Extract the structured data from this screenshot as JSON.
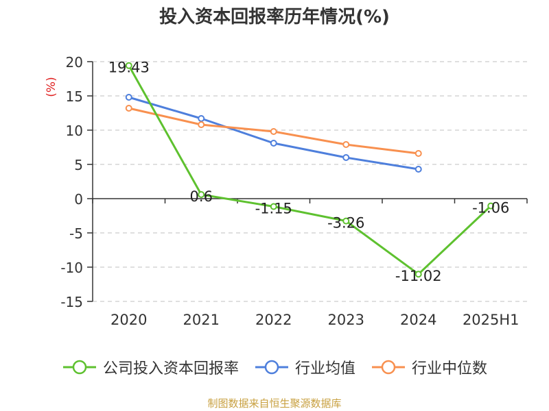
{
  "title": "投入资本回报率历年情况(%)",
  "source": "制图数据来自恒生聚源数据库",
  "colors": {
    "company": "#5ec12f",
    "industry_avg": "#4e7fdc",
    "industry_median": "#f8904f",
    "axis": "#333333",
    "grid": "#cccccc",
    "ylabel": "#e02020"
  },
  "chart_data": {
    "type": "line",
    "categories": [
      "2020",
      "2021",
      "2022",
      "2023",
      "2024",
      "2025H1"
    ],
    "ylabel": "(%)",
    "xlabel": "",
    "ylim": [
      -15,
      20
    ],
    "yticks": [
      20,
      15,
      10,
      5,
      0,
      -5,
      -10,
      -15
    ],
    "grid": true,
    "legend_position": "bottom",
    "series": [
      {
        "name": "公司投入资本回报率",
        "values": [
          19.43,
          0.6,
          -1.15,
          -3.26,
          -11.02,
          -1.06
        ],
        "labels": [
          "19.43",
          "0.6",
          "-1.15",
          "-3.26",
          "-11.02",
          "-1.06"
        ]
      },
      {
        "name": "行业均值",
        "values": [
          14.8,
          11.7,
          8.1,
          6.0,
          4.3,
          null
        ]
      },
      {
        "name": "行业中位数",
        "values": [
          13.2,
          10.8,
          9.8,
          7.9,
          6.6,
          null
        ]
      }
    ]
  }
}
